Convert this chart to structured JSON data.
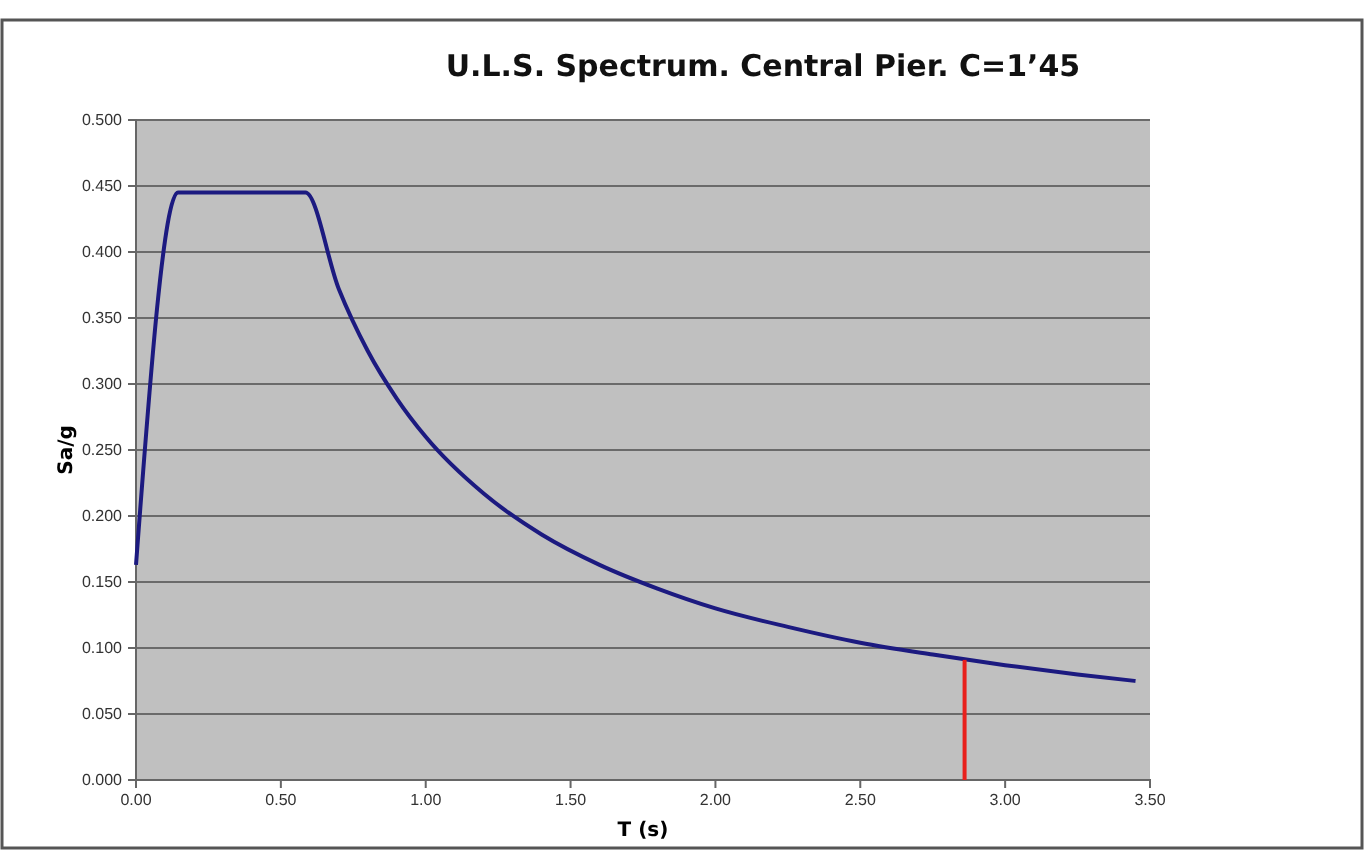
{
  "chart_data": {
    "type": "line",
    "title": "U.L.S. Spectrum. Central Pier. C=1’45",
    "xlabel": "T (s)",
    "ylabel": "Sa/g",
    "series": [
      {
        "color": "#1c1a80",
        "x": [
          0,
          0.145,
          0.585,
          0.7,
          0.8,
          0.9,
          1.0,
          1.2,
          1.4,
          1.6,
          1.8,
          2.0,
          2.25,
          2.5,
          2.75,
          3.0,
          3.25,
          3.45
        ],
        "values": [
          0.163,
          0.445,
          0.445,
          0.372,
          0.325,
          0.289,
          0.26,
          0.217,
          0.186,
          0.163,
          0.145,
          0.13,
          0.116,
          0.104,
          0.095,
          0.087,
          0.08,
          0.075
        ]
      },
      {
        "color": "#e8201c",
        "x": [
          2.86,
          2.86
        ],
        "values": [
          0,
          0.091
        ]
      }
    ],
    "xlim": [
      0,
      3.5
    ],
    "ylim": [
      0,
      0.5
    ],
    "xticks": [
      {
        "value": 0,
        "label": "0.00"
      },
      {
        "value": 0.5,
        "label": "0.50"
      },
      {
        "value": 1,
        "label": "1.00"
      },
      {
        "value": 1.5,
        "label": "1.50"
      },
      {
        "value": 2,
        "label": "2.00"
      },
      {
        "value": 2.5,
        "label": "2.50"
      },
      {
        "value": 3,
        "label": "3.00"
      },
      {
        "value": 3.5,
        "label": "3.50"
      }
    ],
    "yticks": [
      {
        "value": 0,
        "label": "0.000"
      },
      {
        "value": 0.05,
        "label": "0.050"
      },
      {
        "value": 0.1,
        "label": "0.100"
      },
      {
        "value": 0.15,
        "label": "0.150"
      },
      {
        "value": 0.2,
        "label": "0.200"
      },
      {
        "value": 0.25,
        "label": "0.250"
      },
      {
        "value": 0.3,
        "label": "0.300"
      },
      {
        "value": 0.35,
        "label": "0.350"
      },
      {
        "value": 0.4,
        "label": "0.400"
      },
      {
        "value": 0.45,
        "label": "0.450"
      },
      {
        "value": 0.5,
        "label": "0.500"
      }
    ],
    "grid": "y",
    "marker": "none",
    "line_style": "solid"
  }
}
